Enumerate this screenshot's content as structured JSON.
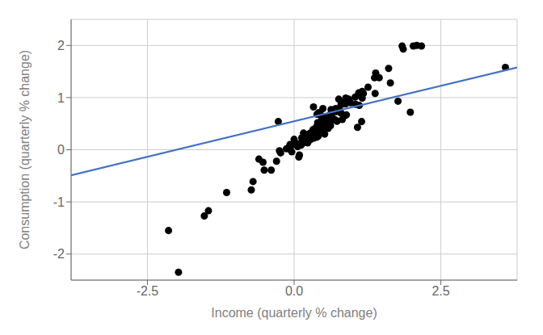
{
  "chart_data": {
    "type": "scatter",
    "xlabel": "Income (quarterly % change)",
    "ylabel": "Consumption (quarterly % change)",
    "xlim": [
      -3.8,
      3.8
    ],
    "ylim": [
      -2.5,
      2.5
    ],
    "xticks": [
      -2.5,
      {
        "value": 0,
        "label": "0.0"
      },
      2.5
    ],
    "yticks": [
      -2,
      -1,
      0,
      1,
      2
    ],
    "grid": true,
    "series": [
      {
        "type": "scatter",
        "color": "#000000",
        "x": [
          -0.27,
          1.08,
          0.32,
          1.98,
          1.15,
          1.77,
          0.49,
          0.86,
          0.49,
          1.84,
          0.8,
          0.69,
          -0.04,
          1.14,
          0.47,
          0.16,
          0.96,
          0.63,
          2.03,
          0.88,
          1.26,
          1.45,
          1.39,
          2.09,
          1.64,
          0.76,
          1.05,
          1.61,
          2.17,
          1.86,
          1.16,
          1.37,
          0.33,
          0.42,
          0.89,
          1.18,
          0.73,
          1.38,
          0.39,
          0.56,
          1.11,
          0.44,
          0.26,
          0.79,
          0.73,
          0.52,
          1.16,
          0.28,
          0.55,
          0.82,
          0.33,
          0.21,
          -0.25,
          0.28,
          0.58,
          0.42,
          0.42,
          0.09,
          -0.07,
          0.5,
          0.24,
          -0.07,
          -0.73,
          -0.39,
          -0.13,
          0.34,
          -0.04,
          -0.51,
          -1.46,
          0.0,
          0.23,
          0.62,
          0.32,
          0.12,
          0.38,
          0.61,
          0.41,
          -0.6,
          -0.07,
          0.56,
          0.03,
          -0.23,
          0.08,
          0.3,
          -0.3,
          -0.7,
          -1.53,
          -2.14,
          -1.97,
          -1.15,
          -0.53,
          0.27,
          0.06,
          0.13,
          0.4,
          0.31,
          0.41,
          0.64,
          0.18,
          0.62,
          0.41,
          0.31,
          0.41,
          0.63,
          0.18,
          0.61,
          0.55,
          1.1,
          0.35,
          0.59,
          0.23,
          0.14,
          0.36,
          0.13,
          0.63,
          0.28,
          0.29,
          0.4,
          0.22,
          0.48,
          0.14,
          0.41,
          0.27,
          0.34,
          0.08,
          0.47,
          0.19,
          0.25,
          0.42,
          0.54,
          0.61,
          0.34,
          0.25,
          0.38,
          0.56,
          0.41,
          0.21,
          0.33,
          0.38,
          0.65,
          0.44,
          0.52,
          0.79,
          0.61,
          0.71,
          0.72,
          0.57,
          0.9,
          0.77,
          0.84,
          0.88,
          0.73,
          0.84,
          0.93,
          3.6,
          0.71,
          0.86,
          1.04,
          0.9,
          0.83
        ],
        "values": [
          0.54,
          0.43,
          0.38,
          0.72,
          0.54,
          0.93,
          0.79,
          0.65,
          0.62,
          1.99,
          0.87,
          0.58,
          -0.04,
          1.03,
          0.61,
          0.32,
          0.9,
          0.77,
          1.99,
          0.99,
          1.2,
          1.38,
          1.47,
          2.0,
          1.28,
          0.97,
          0.87,
          1.56,
          1.99,
          1.93,
          1.12,
          1.38,
          0.82,
          0.71,
          0.67,
          1.08,
          0.55,
          1.08,
          0.68,
          0.5,
          0.85,
          0.7,
          0.3,
          0.72,
          0.55,
          0.3,
          0.99,
          0.22,
          0.43,
          0.58,
          0.22,
          0.22,
          -0.02,
          0.26,
          0.41,
          0.41,
          0.36,
          -0.1,
          0.01,
          0.5,
          0.21,
          0.08,
          -0.77,
          -0.39,
          0.02,
          0.28,
          0.09,
          -0.39,
          -1.17,
          0.2,
          0.13,
          0.46,
          0.33,
          0.09,
          0.24,
          0.67,
          0.26,
          -0.18,
          0.1,
          0.41,
          0.12,
          -0.06,
          -0.14,
          0.29,
          -0.22,
          -0.61,
          -1.27,
          -1.55,
          -2.35,
          -0.82,
          -0.24,
          0.19,
          0.06,
          0.23,
          0.52,
          0.25,
          0.43,
          0.7,
          0.27,
          0.61,
          0.44,
          0.29,
          0.45,
          0.59,
          0.25,
          0.54,
          0.63,
          1.09,
          0.39,
          0.51,
          0.27,
          0.12,
          0.3,
          0.14,
          0.55,
          0.32,
          0.29,
          0.44,
          0.25,
          0.52,
          0.18,
          0.43,
          0.31,
          0.36,
          0.09,
          0.41,
          0.24,
          0.3,
          0.4,
          0.57,
          0.65,
          0.38,
          0.27,
          0.34,
          0.62,
          0.43,
          0.24,
          0.39,
          0.44,
          0.61,
          0.44,
          0.52,
          0.71,
          0.65,
          0.73,
          0.74,
          0.63,
          0.91,
          0.77,
          0.88,
          0.88,
          0.77,
          0.88,
          0.97,
          1.58,
          0.79,
          0.92,
          1.01,
          0.97,
          0.89
        ]
      },
      {
        "type": "line",
        "color": "#4472C4",
        "x": [
          -3.8,
          3.8
        ],
        "values": [
          -0.4886,
          1.5786
        ]
      }
    ]
  }
}
